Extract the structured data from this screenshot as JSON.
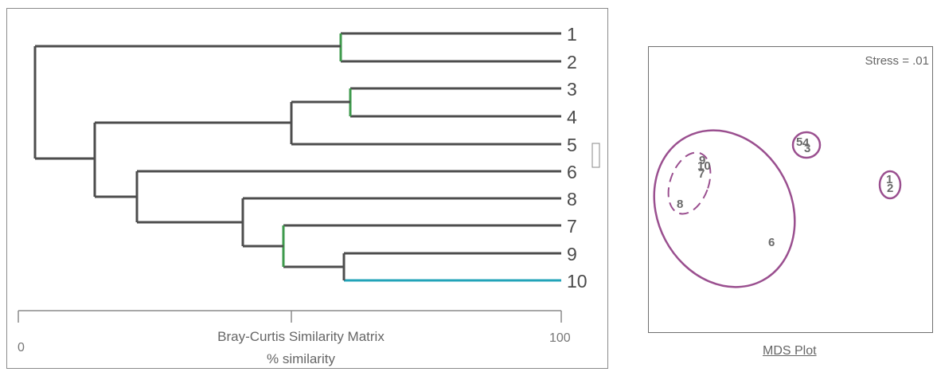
{
  "dendrogram": {
    "leaves": [
      "1",
      "2",
      "3",
      "4",
      "5",
      "6",
      "8",
      "7",
      "9",
      "10"
    ],
    "axis": {
      "min_label": "0",
      "mid_label": "",
      "max_label": "100",
      "title_line1": "Bray-Curtis Similarity Matrix",
      "title_line2": "% similarity"
    },
    "colors": {
      "branch": "#4d4d4d",
      "accent_green": "#3e9a4c",
      "accent_cyan": "#22a3b8"
    }
  },
  "mds": {
    "stress_label": "Stress = .01",
    "caption": "MDS Plot",
    "points": [
      "1",
      "2",
      "3",
      "4",
      "5",
      "6",
      "7",
      "8",
      "9",
      "10"
    ],
    "ellipse_color": "#9a4f8f"
  }
}
